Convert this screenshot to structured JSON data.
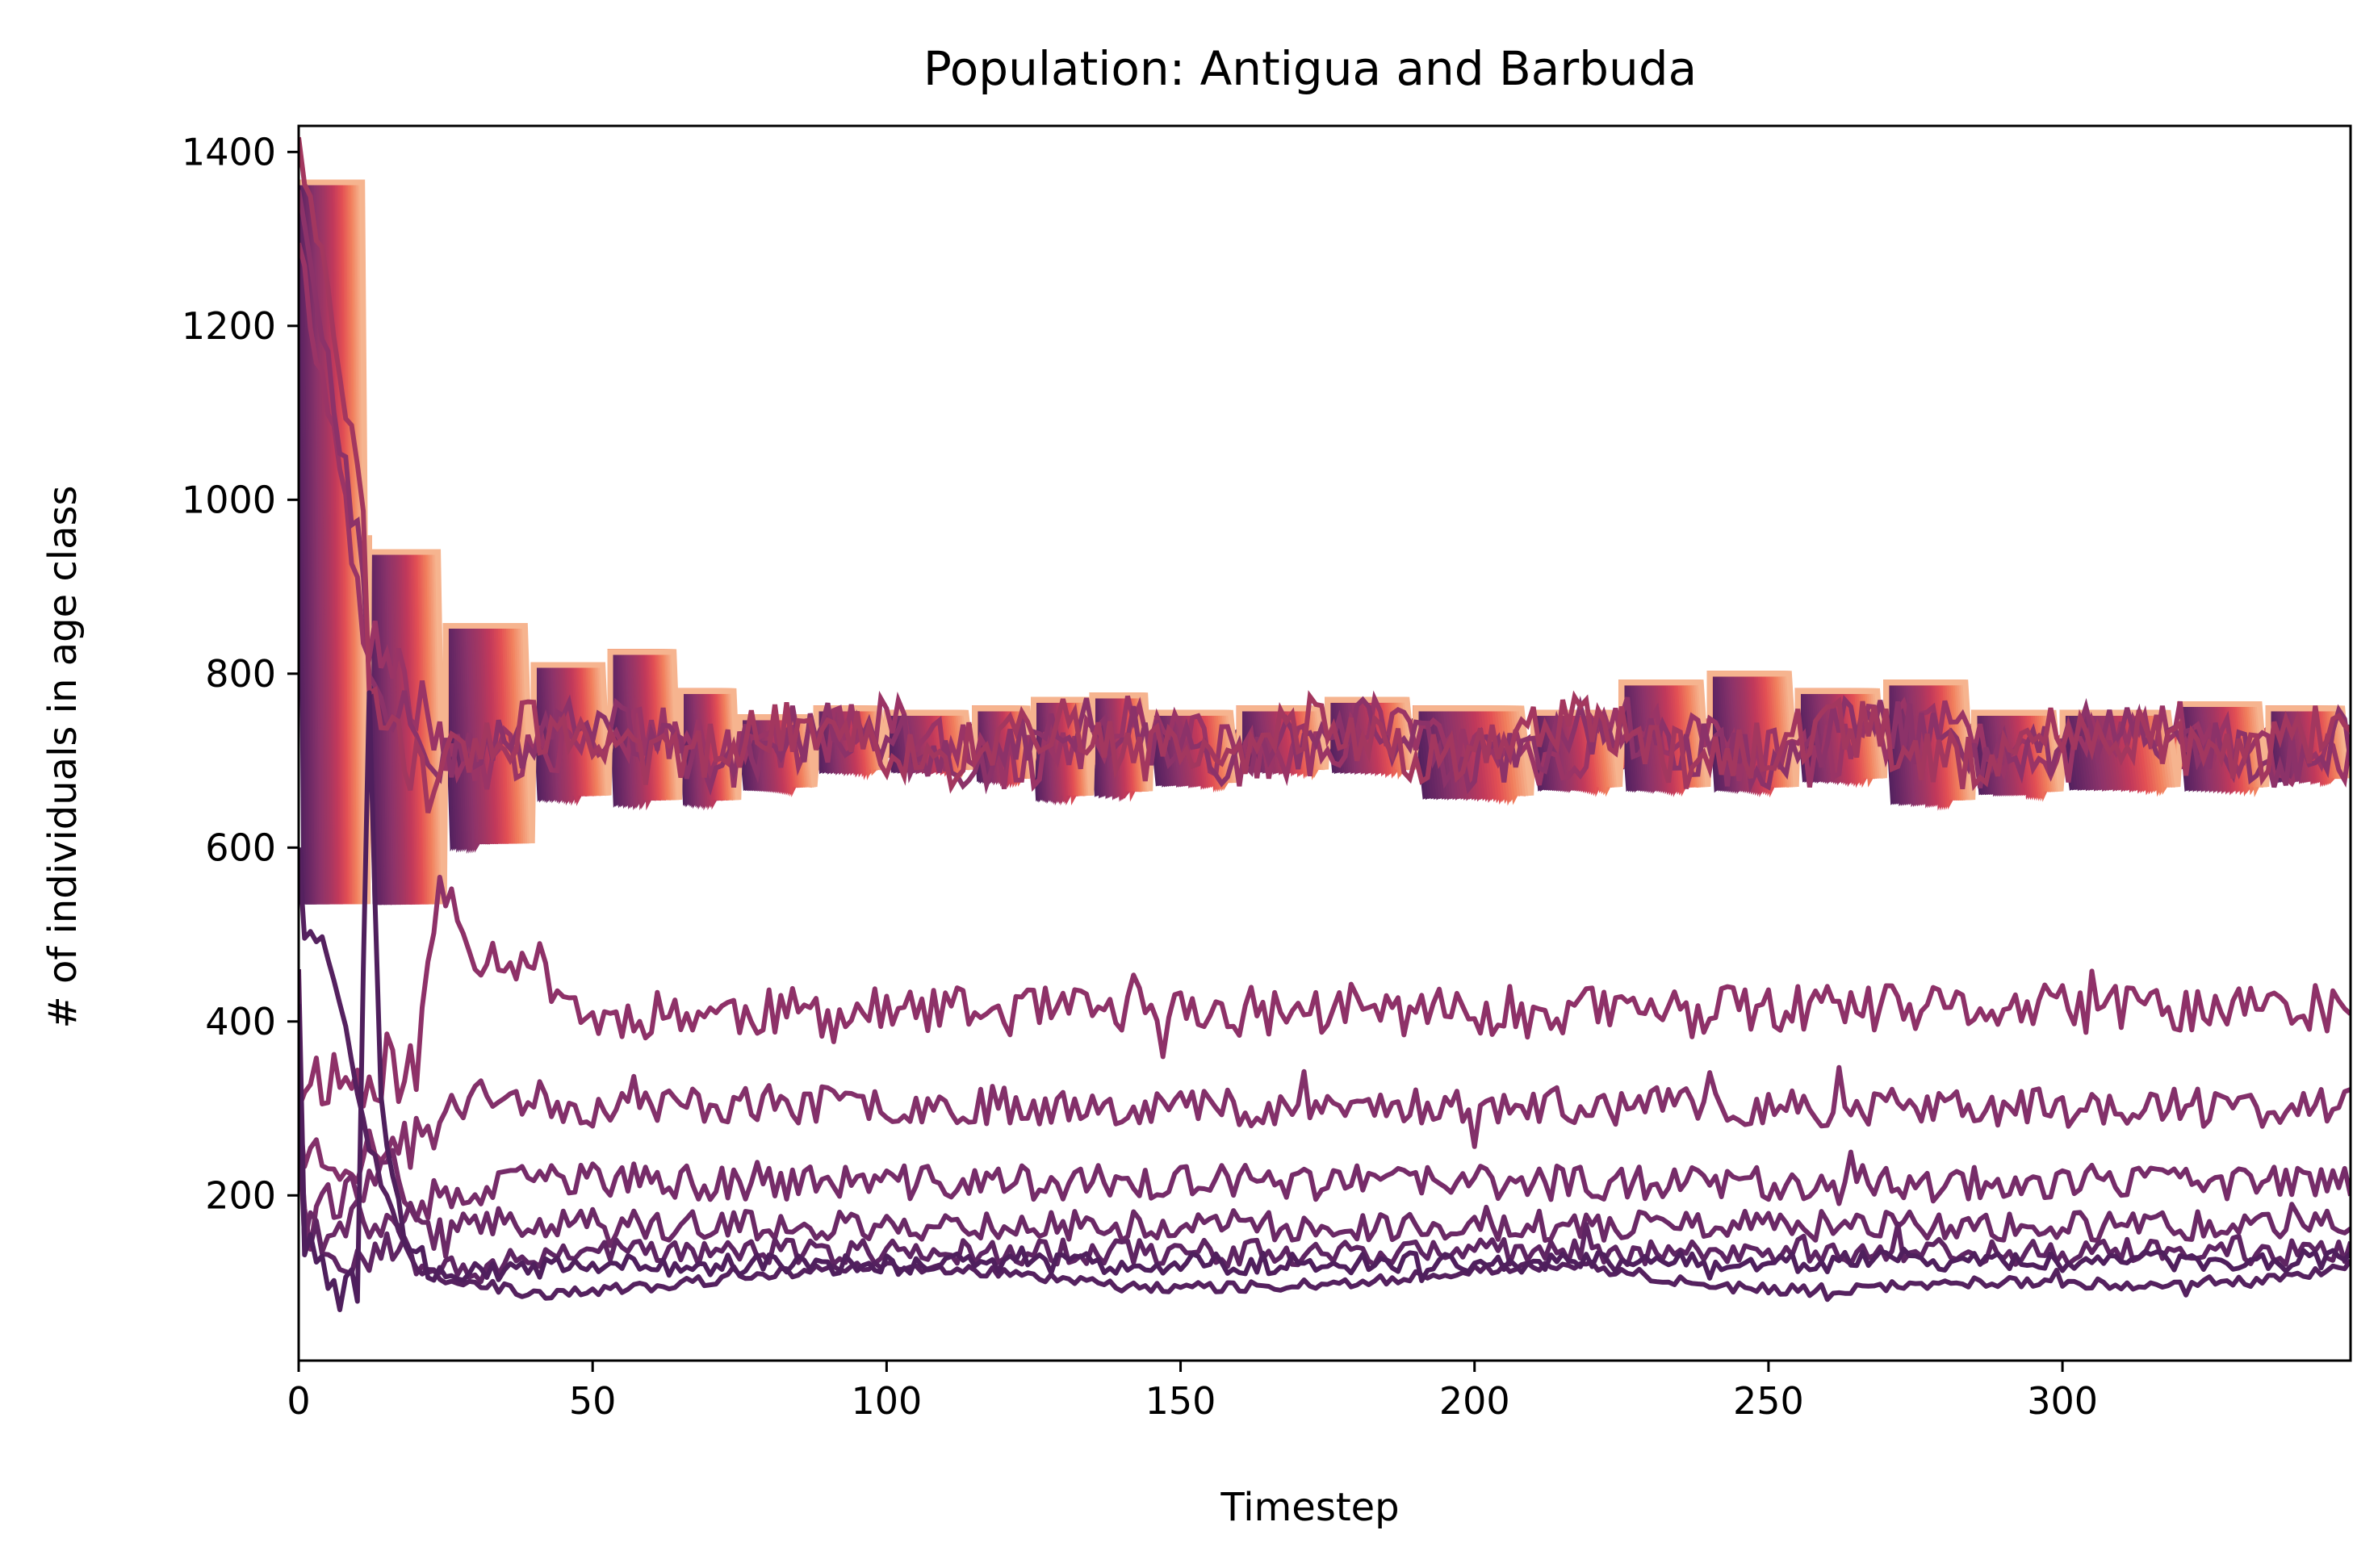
{
  "chart_data": {
    "type": "line",
    "title": "Population: Antigua and Barbuda",
    "xlabel": "Timestep",
    "ylabel": "# of individuals in age class",
    "xlim": [
      0,
      349
    ],
    "ylim": [
      10,
      1430
    ],
    "x_ticks": [
      0,
      50,
      100,
      150,
      200,
      250,
      300
    ],
    "y_ticks": [
      200,
      400,
      600,
      800,
      1000,
      1200,
      1400
    ],
    "grid": false,
    "legend": "none",
    "colormap": [
      "#f6b48f",
      "#f1805d",
      "#e35054",
      "#c2395b",
      "#a23663",
      "#8b336a",
      "#6f2a66",
      "#54215f"
    ],
    "band": {
      "count": 40,
      "description_source": "many overlapping stepped age-class lines",
      "segments": [
        {
          "x": [
            0,
            12
          ],
          "high": 1365,
          "low": 535
        },
        {
          "x": [
            12,
            25
          ],
          "high": 940,
          "low": 535
        },
        {
          "x": [
            25,
            40
          ],
          "high": 855,
          "low": 605
        },
        {
          "x": [
            40,
            53
          ],
          "high": 810,
          "low": 660
        },
        {
          "x": [
            53,
            65
          ],
          "high": 825,
          "low": 655
        },
        {
          "x": [
            65,
            75
          ],
          "high": 780,
          "low": 655
        },
        {
          "x": [
            75,
            88
          ],
          "high": 750,
          "low": 670
        },
        {
          "x": [
            88,
            100
          ],
          "high": 760,
          "low": 690
        },
        {
          "x": [
            100,
            115
          ],
          "high": 755,
          "low": 690
        },
        {
          "x": [
            115,
            125
          ],
          "high": 760,
          "low": 680
        },
        {
          "x": [
            125,
            135
          ],
          "high": 770,
          "low": 660
        },
        {
          "x": [
            135,
            145
          ],
          "high": 775,
          "low": 665
        },
        {
          "x": [
            145,
            160
          ],
          "high": 755,
          "low": 675
        },
        {
          "x": [
            160,
            175
          ],
          "high": 760,
          "low": 690
        },
        {
          "x": [
            175,
            190
          ],
          "high": 770,
          "low": 690
        },
        {
          "x": [
            190,
            210
          ],
          "high": 760,
          "low": 660
        },
        {
          "x": [
            210,
            225
          ],
          "high": 755,
          "low": 670
        },
        {
          "x": [
            225,
            240
          ],
          "high": 790,
          "low": 670
        },
        {
          "x": [
            240,
            255
          ],
          "high": 800,
          "low": 670
        },
        {
          "x": [
            255,
            270
          ],
          "high": 780,
          "low": 680
        },
        {
          "x": [
            270,
            285
          ],
          "high": 790,
          "low": 655
        },
        {
          "x": [
            285,
            300
          ],
          "high": 755,
          "low": 665
        },
        {
          "x": [
            300,
            320
          ],
          "high": 755,
          "low": 670
        },
        {
          "x": [
            320,
            335
          ],
          "high": 765,
          "low": 670
        },
        {
          "x": [
            335,
            349
          ],
          "high": 760,
          "low": 680
        }
      ]
    },
    "series": [
      {
        "color": "#8e3168",
        "start": [
          0,
          300
        ],
        "anchors": [
          [
            5,
            340
          ],
          [
            10,
            330
          ],
          [
            15,
            350
          ],
          [
            20,
            340
          ],
          [
            24,
            560
          ],
          [
            30,
            480
          ],
          [
            40,
            470
          ],
          [
            50,
            400
          ],
          [
            60,
            410
          ],
          [
            349,
            415
          ]
        ],
        "amplitude": 28,
        "seed": 11
      },
      {
        "color": "#83306a",
        "start": [
          0,
          300
        ],
        "anchors": [
          [
            5,
            250
          ],
          [
            10,
            240
          ],
          [
            15,
            260
          ],
          [
            20,
            260
          ],
          [
            25,
            290
          ],
          [
            30,
            320
          ],
          [
            40,
            310
          ],
          [
            50,
            300
          ],
          [
            60,
            305
          ],
          [
            349,
            300
          ]
        ],
        "amplitude": 22,
        "seed": 23
      },
      {
        "color": "#762c69",
        "start": [
          0,
          280
        ],
        "anchors": [
          [
            5,
            200
          ],
          [
            10,
            200
          ],
          [
            15,
            210
          ],
          [
            20,
            200
          ],
          [
            25,
            190
          ],
          [
            30,
            200
          ],
          [
            40,
            220
          ],
          [
            50,
            220
          ],
          [
            60,
            215
          ],
          [
            349,
            215
          ]
        ],
        "amplitude": 20,
        "seed": 37
      },
      {
        "color": "#6b2966",
        "start": [
          0,
          300
        ],
        "anchors": [
          [
            5,
            160
          ],
          [
            10,
            160
          ],
          [
            15,
            180
          ],
          [
            20,
            170
          ],
          [
            25,
            150
          ],
          [
            30,
            170
          ],
          [
            40,
            170
          ],
          [
            50,
            170
          ],
          [
            60,
            165
          ],
          [
            349,
            165
          ]
        ],
        "amplitude": 17,
        "seed": 41
      },
      {
        "color": "#5f2563",
        "start": [
          0,
          460
        ],
        "anchors": [
          [
            3,
            160
          ],
          [
            6,
            120
          ],
          [
            10,
            130
          ],
          [
            15,
            140
          ],
          [
            20,
            130
          ],
          [
            25,
            130
          ],
          [
            30,
            110
          ],
          [
            40,
            130
          ],
          [
            50,
            140
          ],
          [
            60,
            135
          ],
          [
            349,
            135
          ]
        ],
        "amplitude": 15,
        "seed": 53
      },
      {
        "color": "#55215f",
        "start": [
          0,
          600
        ],
        "anchors": [
          [
            4,
            500
          ],
          [
            8,
            390
          ],
          [
            12,
            260
          ],
          [
            15,
            200
          ],
          [
            20,
            120
          ],
          [
            25,
            105
          ],
          [
            30,
            100
          ],
          [
            40,
            85
          ],
          [
            50,
            90
          ],
          [
            60,
            95
          ],
          [
            80,
            110
          ],
          [
            100,
            120
          ],
          [
            120,
            110
          ],
          [
            140,
            95
          ],
          [
            160,
            95
          ],
          [
            180,
            100
          ],
          [
            200,
            115
          ],
          [
            220,
            120
          ],
          [
            240,
            95
          ],
          [
            260,
            90
          ],
          [
            280,
            100
          ],
          [
            300,
            100
          ],
          [
            320,
            95
          ],
          [
            340,
            105
          ],
          [
            349,
            120
          ]
        ],
        "amplitude": 6,
        "seed": 67
      },
      {
        "color": "#4f1f5d",
        "start": [
          0,
          420
        ],
        "anchors": [
          [
            3,
            140
          ],
          [
            6,
            90
          ],
          [
            10,
            100
          ],
          [
            12,
            790
          ],
          [
            14,
            300
          ],
          [
            18,
            160
          ],
          [
            22,
            120
          ],
          [
            30,
            110
          ],
          [
            40,
            115
          ],
          [
            60,
            120
          ],
          [
            349,
            125
          ]
        ],
        "amplitude": 12,
        "seed": 79
      }
    ]
  }
}
